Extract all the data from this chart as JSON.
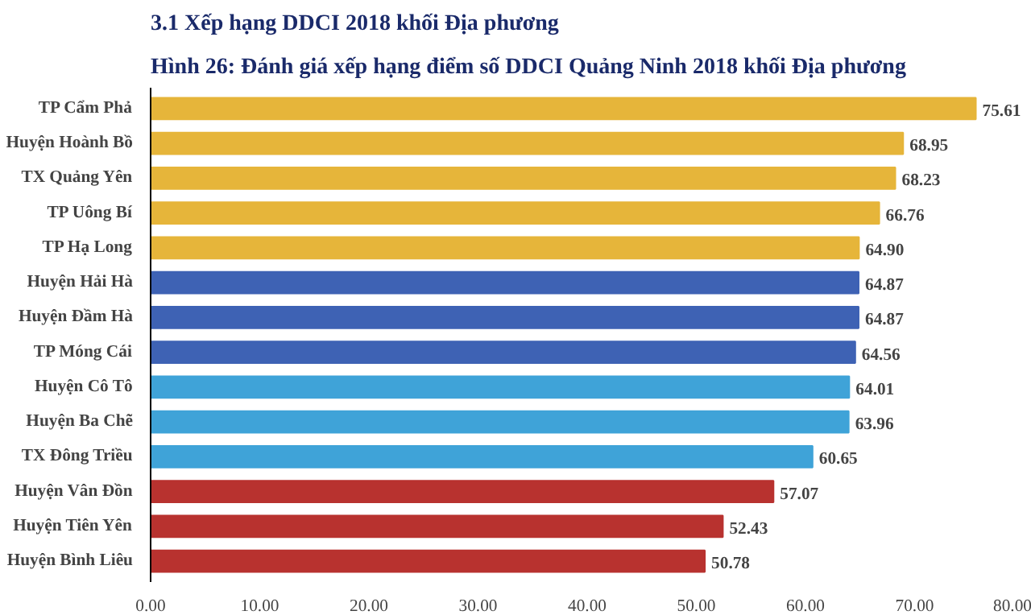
{
  "chart_data": {
    "type": "bar",
    "orientation": "horizontal",
    "title": "3.1 Xếp hạng DDCI 2018 khối Địa phương",
    "subtitle": "Hình 26: Đánh giá xếp hạng điểm số DDCI Quảng Ninh 2018 khối Địa phương",
    "categories": [
      "TP Cẩm Phả",
      "Huyện Hoành Bồ",
      "TX Quảng Yên",
      "TP Uông Bí",
      "TP Hạ Long",
      "Huyện Hải Hà",
      "Huyện Đầm Hà",
      "TP Móng Cái",
      "Huyện Cô Tô",
      "Huyện Ba Chẽ",
      "TX Đông Triều",
      "Huyện Vân Đồn",
      "Huyện Tiên Yên",
      "Huyện Bình Liêu"
    ],
    "values": [
      75.61,
      68.95,
      68.23,
      66.76,
      64.9,
      64.87,
      64.87,
      64.56,
      64.01,
      63.96,
      60.65,
      57.07,
      52.43,
      50.78
    ],
    "value_labels": [
      "75.61",
      "68.95",
      "68.23",
      "66.76",
      "64.90",
      "64.87",
      "64.87",
      "64.56",
      "64.01",
      "63.96",
      "60.65",
      "57.07",
      "52.43",
      "50.78"
    ],
    "colors": [
      "#e6b53a",
      "#e6b53a",
      "#e6b53a",
      "#e6b53a",
      "#e6b53a",
      "#3e62b4",
      "#3e62b4",
      "#3e62b4",
      "#3fa3d8",
      "#3fa3d8",
      "#3fa3d8",
      "#b8322f",
      "#b8322f",
      "#b8322f"
    ],
    "xlim": [
      0,
      80
    ],
    "xticks": [
      {
        "value": 0,
        "label": "0.00"
      },
      {
        "value": 10,
        "label": "10.00"
      },
      {
        "value": 20,
        "label": "20.00"
      },
      {
        "value": 30,
        "label": "30.00"
      },
      {
        "value": 40,
        "label": "40.00"
      },
      {
        "value": 50,
        "label": "50.00"
      },
      {
        "value": 60,
        "label": "60.00"
      },
      {
        "value": 70,
        "label": "70.00"
      },
      {
        "value": 80,
        "label": "80.00"
      }
    ]
  }
}
